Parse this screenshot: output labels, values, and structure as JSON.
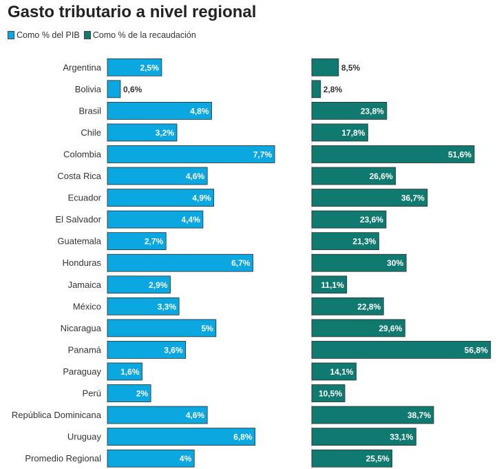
{
  "title": "Gasto tributario a nivel regional",
  "colors": {
    "pib": "#0aa7e0",
    "recaudacion": "#117a70"
  },
  "chart_data": {
    "type": "bar",
    "orientation": "horizontal",
    "title": "Gasto tributario a nivel regional",
    "legend_placement": "top-left",
    "grid": false,
    "categories": [
      "Argentina",
      "Bolivia",
      "Brasil",
      "Chile",
      "Colombia",
      "Costa Rica",
      "Ecuador",
      "El Salvador",
      "Guatemala",
      "Honduras",
      "Jamaica",
      "México",
      "Nicaragua",
      "Panamá",
      "Paraguay",
      "Perú",
      "República Dominicana",
      "Uruguay",
      "Promedio Regional"
    ],
    "series": [
      {
        "name": "Como % del PIB",
        "values": [
          2.5,
          0.6,
          4.8,
          3.2,
          7.7,
          4.6,
          4.9,
          4.4,
          2.7,
          6.7,
          2.9,
          3.3,
          5,
          3.6,
          1.6,
          2,
          4.6,
          6.8,
          4
        ],
        "labels": [
          "2,5%",
          "0,6%",
          "4,8%",
          "3,2%",
          "7,7%",
          "4,6%",
          "4,9%",
          "4,4%",
          "2,7%",
          "6,7%",
          "2,9%",
          "3,3%",
          "5%",
          "3,6%",
          "1,6%",
          "2%",
          "4,6%",
          "6,8%",
          "4%"
        ],
        "xlim": [
          0,
          8.3
        ]
      },
      {
        "name": "Como % de la recaudación",
        "values": [
          8.5,
          2.8,
          23.8,
          17.8,
          51.6,
          26.6,
          36.7,
          23.6,
          21.3,
          30,
          11.1,
          22.8,
          29.6,
          56.8,
          14.1,
          10.5,
          38.7,
          33.1,
          25.5
        ],
        "labels": [
          "8,5%",
          "2,8%",
          "23,8%",
          "17,8%",
          "51,6%",
          "26,6%",
          "36,7%",
          "23,6%",
          "21,3%",
          "30%",
          "11,1%",
          "22,8%",
          "29,6%",
          "56,8%",
          "14,1%",
          "10,5%",
          "38,7%",
          "33,1%",
          "25,5%"
        ],
        "xlim": [
          0,
          57.5
        ]
      }
    ]
  }
}
